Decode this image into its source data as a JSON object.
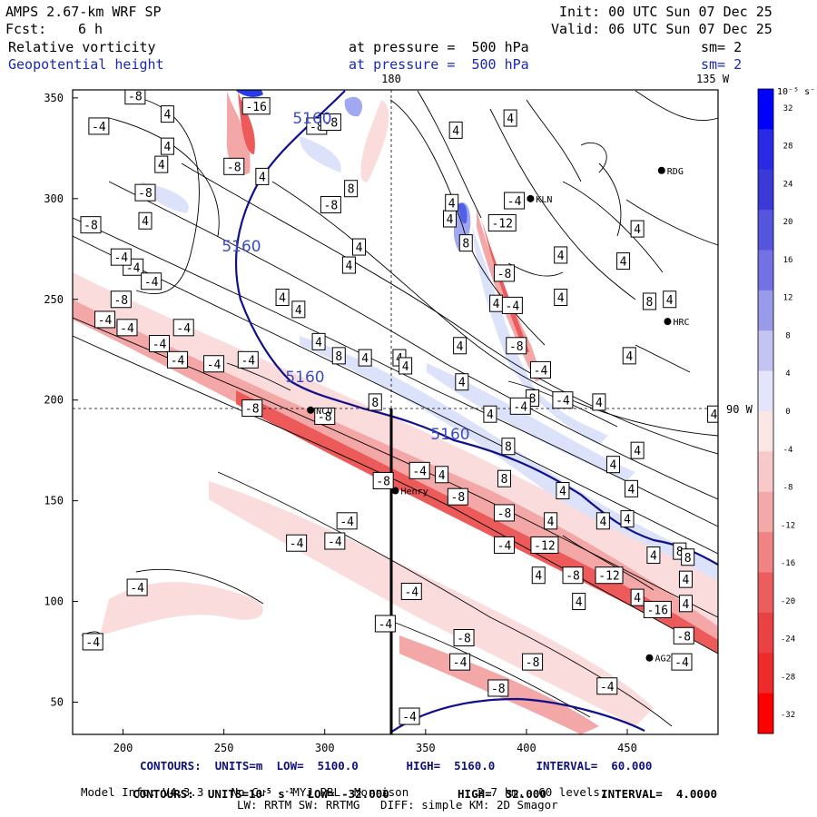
{
  "header": {
    "model": "AMPS 2.67-km WRF SP",
    "init": "Init: 00 UTC Sun 07 Dec 25",
    "fcst_label": "Fcst:",
    "fcst_value": "6 h",
    "valid": "Valid: 06 UTC Sun 07 Dec 25",
    "field1_name": "Relative vorticity",
    "field1_level": "at pressure =  500 hPa",
    "field1_sm": "sm= 2",
    "field2_name": "Geopotential height",
    "field2_level": "at pressure =  500 hPa",
    "field2_sm": "sm= 2"
  },
  "map": {
    "top_longitude_labels": [
      "180",
      "135 W"
    ],
    "right_latitude_label": "90 W",
    "x_ticks": [
      "200",
      "250",
      "300",
      "350",
      "400",
      "450"
    ],
    "y_ticks": [
      "350",
      "300",
      "250",
      "200",
      "150",
      "100",
      "50"
    ],
    "stations": [
      {
        "name": "KLN",
        "x": 402,
        "y": 300
      },
      {
        "name": "RDG",
        "x": 467,
        "y": 314
      },
      {
        "name": "HRC",
        "x": 470,
        "y": 239
      },
      {
        "name": "NCO",
        "x": 293,
        "y": 195
      },
      {
        "name": "Henry",
        "x": 335,
        "y": 155
      },
      {
        "name": "AG2",
        "x": 461,
        "y": 72
      }
    ],
    "height_contour_labels": [
      "5160",
      "5160",
      "5160",
      "5160"
    ],
    "vorticity_labels": [
      {
        "t": "-8",
        "x": 206,
        "y": 351
      },
      {
        "t": "4",
        "x": 222,
        "y": 342
      },
      {
        "t": "-4",
        "x": 188,
        "y": 336
      },
      {
        "t": "4",
        "x": 222,
        "y": 326
      },
      {
        "t": "-16",
        "x": 266,
        "y": 346
      },
      {
        "t": "-8",
        "x": 296,
        "y": 336
      },
      {
        "t": "4",
        "x": 219,
        "y": 317
      },
      {
        "t": "-8",
        "x": 255,
        "y": 316
      },
      {
        "t": "4",
        "x": 269,
        "y": 311
      },
      {
        "t": "-8",
        "x": 211,
        "y": 303
      },
      {
        "t": "4",
        "x": 211,
        "y": 289
      },
      {
        "t": "-8",
        "x": 184,
        "y": 287
      },
      {
        "t": "-4",
        "x": 205,
        "y": 266
      },
      {
        "t": "-4",
        "x": 199,
        "y": 271
      },
      {
        "t": "-4",
        "x": 214,
        "y": 259
      },
      {
        "t": "-8",
        "x": 199,
        "y": 250
      },
      {
        "t": "-4",
        "x": 191,
        "y": 240
      },
      {
        "t": "-4",
        "x": 202,
        "y": 236
      },
      {
        "t": "-4",
        "x": 218,
        "y": 228
      },
      {
        "t": "-4",
        "x": 227,
        "y": 220
      },
      {
        "t": "-4",
        "x": 245,
        "y": 218
      },
      {
        "t": "-4",
        "x": 262,
        "y": 220
      },
      {
        "t": "-8",
        "x": 303,
        "y": 338
      },
      {
        "t": "-8",
        "x": 303,
        "y": 297
      },
      {
        "t": "8",
        "x": 313,
        "y": 305
      },
      {
        "t": "4",
        "x": 317,
        "y": 276
      },
      {
        "t": "4",
        "x": 312,
        "y": 267
      },
      {
        "t": "4",
        "x": 279,
        "y": 251
      },
      {
        "t": "4",
        "x": 287,
        "y": 245
      },
      {
        "t": "-4",
        "x": 230,
        "y": 236
      },
      {
        "t": "4",
        "x": 297,
        "y": 229
      },
      {
        "t": "8",
        "x": 307,
        "y": 222
      },
      {
        "t": "4",
        "x": 320,
        "y": 221
      },
      {
        "t": "4",
        "x": 337,
        "y": 221
      },
      {
        "t": "8",
        "x": 325,
        "y": 199
      },
      {
        "t": "4",
        "x": 362,
        "y": 290
      },
      {
        "t": "4",
        "x": 363,
        "y": 298
      },
      {
        "t": "-4",
        "x": 394,
        "y": 299
      },
      {
        "t": "8",
        "x": 370,
        "y": 278
      },
      {
        "t": "-12",
        "x": 388,
        "y": 288
      },
      {
        "t": "4",
        "x": 365,
        "y": 334
      },
      {
        "t": "4",
        "x": 392,
        "y": 340
      },
      {
        "t": "-8",
        "x": 389,
        "y": 263
      },
      {
        "t": "4",
        "x": 417,
        "y": 272
      },
      {
        "t": "4",
        "x": 448,
        "y": 269
      },
      {
        "t": "4",
        "x": 455,
        "y": 285
      },
      {
        "t": "4",
        "x": 385,
        "y": 248
      },
      {
        "t": "4",
        "x": 417,
        "y": 251
      },
      {
        "t": "-4",
        "x": 393,
        "y": 247
      },
      {
        "t": "-8",
        "x": 395,
        "y": 227
      },
      {
        "t": "4",
        "x": 367,
        "y": 227
      },
      {
        "t": "4",
        "x": 340,
        "y": 217
      },
      {
        "t": "4",
        "x": 368,
        "y": 209
      },
      {
        "t": "-4",
        "x": 407,
        "y": 215
      },
      {
        "t": "8",
        "x": 403,
        "y": 201
      },
      {
        "t": "-4",
        "x": 418,
        "y": 200
      },
      {
        "t": "4",
        "x": 451,
        "y": 222
      },
      {
        "t": "8",
        "x": 461,
        "y": 249
      },
      {
        "t": "4",
        "x": 471,
        "y": 250
      },
      {
        "t": "4",
        "x": 436,
        "y": 199
      },
      {
        "t": "4",
        "x": 493,
        "y": 193
      },
      {
        "t": "4",
        "x": 382,
        "y": 193
      },
      {
        "t": "-4",
        "x": 397,
        "y": 197
      },
      {
        "t": "8",
        "x": 391,
        "y": 177
      },
      {
        "t": "4",
        "x": 443,
        "y": 168
      },
      {
        "t": "4",
        "x": 455,
        "y": 175
      },
      {
        "t": "-8",
        "x": 300,
        "y": 192
      },
      {
        "t": "-8",
        "x": 264,
        "y": 196
      },
      {
        "t": "-8",
        "x": 329,
        "y": 160
      },
      {
        "t": "-4",
        "x": 347,
        "y": 165
      },
      {
        "t": "4",
        "x": 358,
        "y": 163
      },
      {
        "t": "8",
        "x": 389,
        "y": 161
      },
      {
        "t": "4",
        "x": 418,
        "y": 155
      },
      {
        "t": "-8",
        "x": 366,
        "y": 152
      },
      {
        "t": "4",
        "x": 452,
        "y": 156
      },
      {
        "t": "-8",
        "x": 389,
        "y": 144
      },
      {
        "t": "4",
        "x": 412,
        "y": 140
      },
      {
        "t": "4",
        "x": 438,
        "y": 140
      },
      {
        "t": "4",
        "x": 450,
        "y": 141
      },
      {
        "t": "-4",
        "x": 389,
        "y": 128
      },
      {
        "t": "-12",
        "x": 409,
        "y": 128
      },
      {
        "t": "8",
        "x": 476,
        "y": 125
      },
      {
        "t": "8",
        "x": 480,
        "y": 122
      },
      {
        "t": "4",
        "x": 463,
        "y": 123
      },
      {
        "t": "4",
        "x": 406,
        "y": 113
      },
      {
        "t": "-8",
        "x": 423,
        "y": 113
      },
      {
        "t": "-12",
        "x": 441,
        "y": 113
      },
      {
        "t": "4",
        "x": 479,
        "y": 111
      },
      {
        "t": "4",
        "x": 479,
        "y": 99
      },
      {
        "t": "4",
        "x": 426,
        "y": 100
      },
      {
        "t": "4",
        "x": 455,
        "y": 102
      },
      {
        "t": "-16",
        "x": 465,
        "y": 96
      },
      {
        "t": "-8",
        "x": 478,
        "y": 83
      },
      {
        "t": "-4",
        "x": 477,
        "y": 70
      },
      {
        "t": "-4",
        "x": 311,
        "y": 140
      },
      {
        "t": "-4",
        "x": 305,
        "y": 130
      },
      {
        "t": "-4",
        "x": 286,
        "y": 129
      },
      {
        "t": "-4",
        "x": 207,
        "y": 107
      },
      {
        "t": "-4",
        "x": 185,
        "y": 80
      },
      {
        "t": "-4",
        "x": 343,
        "y": 105
      },
      {
        "t": "-4",
        "x": 330,
        "y": 89
      },
      {
        "t": "-8",
        "x": 369,
        "y": 82
      },
      {
        "t": "-4",
        "x": 367,
        "y": 70
      },
      {
        "t": "-8",
        "x": 403,
        "y": 70
      },
      {
        "t": "-4",
        "x": 440,
        "y": 58
      },
      {
        "t": "-8",
        "x": 386,
        "y": 57
      },
      {
        "t": "-4",
        "x": 342,
        "y": 43
      }
    ]
  },
  "colorbar": {
    "units_label": "10⁻⁵ s⁻¹",
    "labels": [
      "32",
      "28",
      "24",
      "20",
      "16",
      "12",
      "8",
      "4",
      "0",
      "-4",
      "-8",
      "-12",
      "-16",
      "-20",
      "-24",
      "-28",
      "-32"
    ],
    "colors": [
      "#0000ff",
      "#2a2ae6",
      "#3a3ad9",
      "#5555de",
      "#7272e4",
      "#9a9aea",
      "#c4c4f3",
      "#e4e4fa",
      "#fbe6e6",
      "#f8c9c9",
      "#f4a9a9",
      "#f08383",
      "#ec5e5e",
      "#ea4242",
      "#ef2a2a",
      "#ff0000"
    ]
  },
  "footer": {
    "line1": "CONTOURS:  UNITS=m  LOW=  5100.0       HIGH=  5160.0      INTERVAL=  60.000",
    "line2_a": "CONTOURS:  UNITS=10",
    "line2_exp": "-5",
    "line2_b": " s",
    "line2_exp2": "-1",
    "line2_c": "  LOW= -32.000          HIGH=  32.000        INTERVAL=  4.0000",
    "line3": "Model Info: V4.3.3    No Cu    MYJ PBL  Morrison          2.7 km,  60 levels,",
    "line4": "LW: RRTM SW: RRTMG   DIFF: simple KM: 2D Smagor"
  },
  "palette": {
    "height_contour": "#10108a",
    "label_blue": "#3a4ac8",
    "neg_light": "#fbdcdc",
    "neg_mid": "#f3a7a7",
    "neg_strong": "#ec5a5a",
    "pos_light": "#dde2fb",
    "pos_mid": "#9fa8f0",
    "pos_strong": "#2a3ce8"
  }
}
